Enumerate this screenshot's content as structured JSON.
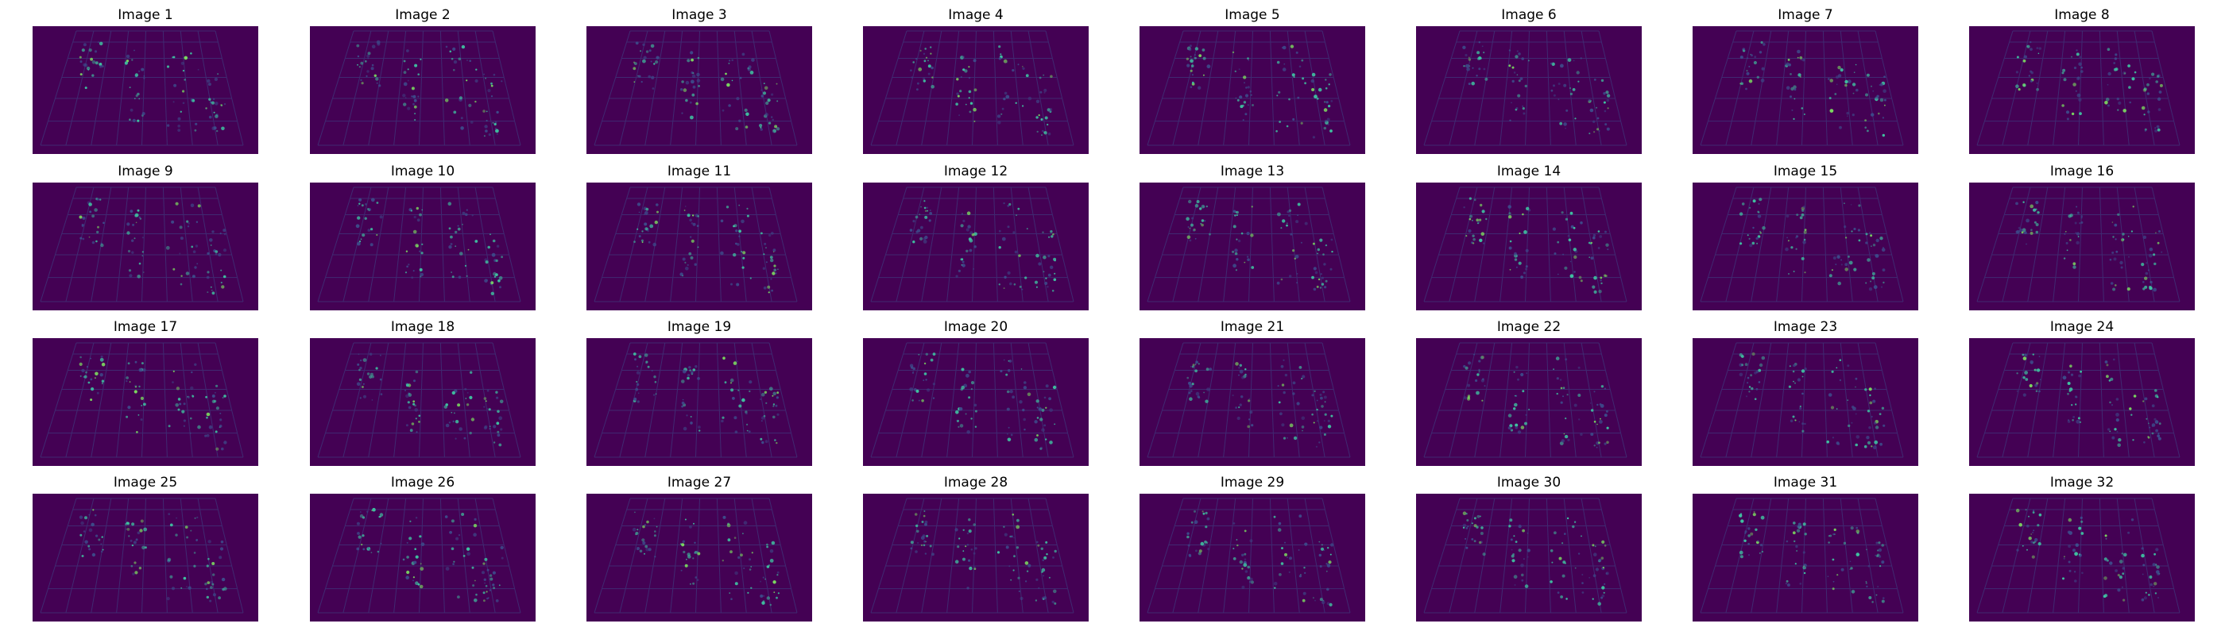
{
  "colors": {
    "background": "#440154",
    "frame": "#3d4a8a",
    "highlight": "#3fc0a0",
    "bright": "#7bd860"
  },
  "images": [
    {
      "title": "Image 1"
    },
    {
      "title": "Image 2"
    },
    {
      "title": "Image 3"
    },
    {
      "title": "Image 4"
    },
    {
      "title": "Image 5"
    },
    {
      "title": "Image 6"
    },
    {
      "title": "Image 7"
    },
    {
      "title": "Image 8"
    },
    {
      "title": "Image 9"
    },
    {
      "title": "Image 10"
    },
    {
      "title": "Image 11"
    },
    {
      "title": "Image 12"
    },
    {
      "title": "Image 13"
    },
    {
      "title": "Image 14"
    },
    {
      "title": "Image 15"
    },
    {
      "title": "Image 16"
    },
    {
      "title": "Image 17"
    },
    {
      "title": "Image 18"
    },
    {
      "title": "Image 19"
    },
    {
      "title": "Image 20"
    },
    {
      "title": "Image 21"
    },
    {
      "title": "Image 22"
    },
    {
      "title": "Image 23"
    },
    {
      "title": "Image 24"
    },
    {
      "title": "Image 25"
    },
    {
      "title": "Image 26"
    },
    {
      "title": "Image 27"
    },
    {
      "title": "Image 28"
    },
    {
      "title": "Image 29"
    },
    {
      "title": "Image 30"
    },
    {
      "title": "Image 31"
    },
    {
      "title": "Image 32"
    }
  ]
}
